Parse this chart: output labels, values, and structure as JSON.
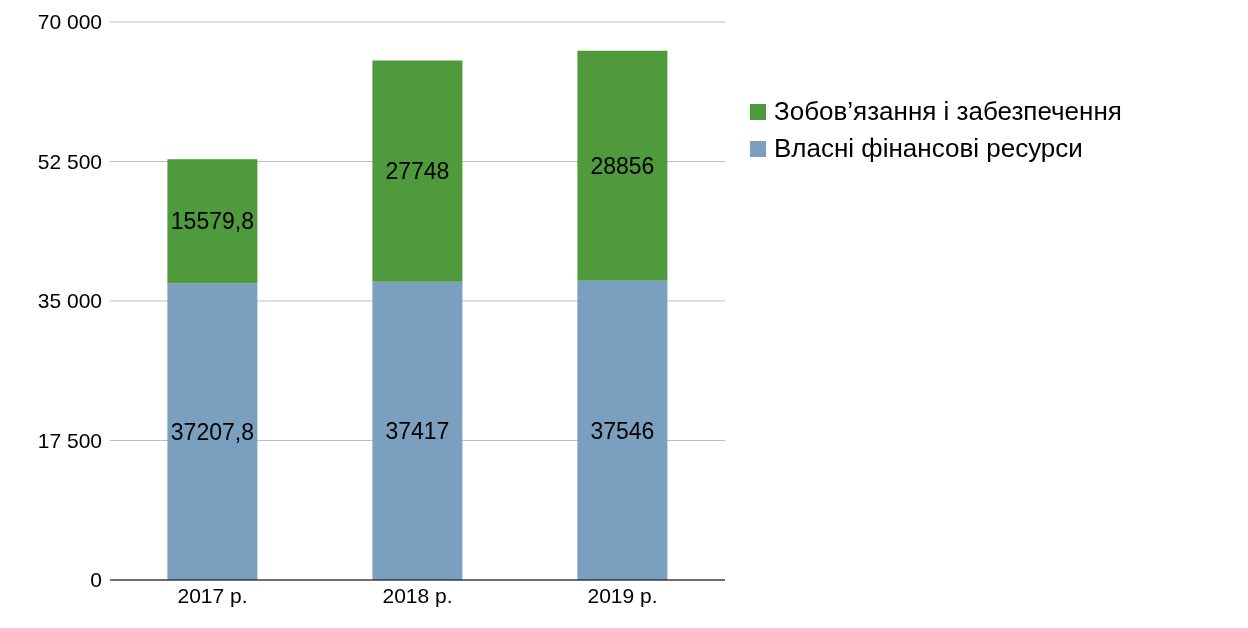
{
  "chart_data": {
    "type": "bar",
    "stacked": true,
    "categories": [
      "2017 р.",
      "2018 р.",
      "2019 р."
    ],
    "series": [
      {
        "name": "Власні фінансові ресурси",
        "color": "#7b9fbf",
        "values": [
          37207.8,
          37417,
          37546
        ],
        "value_labels": [
          "37207,8",
          "37417",
          "37546"
        ]
      },
      {
        "name": "Зобов’язання і забезпечення",
        "color": "#4f9a3c",
        "values": [
          15579.8,
          27748,
          28856
        ],
        "value_labels": [
          "15579,8",
          "27748",
          "28856"
        ]
      }
    ],
    "ylim": [
      0,
      70000
    ],
    "yticks": [
      0,
      {
        "value": 17500,
        "label": "17 500"
      },
      {
        "value": 35000,
        "label": "35 000"
      },
      {
        "value": 52500,
        "label": "52 500"
      },
      {
        "value": 70000,
        "label": "70 000"
      }
    ],
    "grid": "y",
    "legend": "right"
  }
}
